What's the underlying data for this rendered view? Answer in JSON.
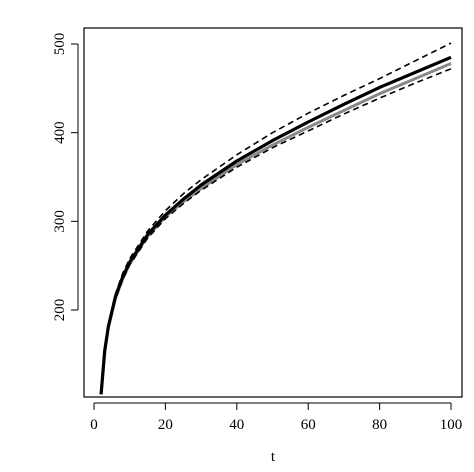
{
  "chart_data": {
    "type": "line",
    "title": "",
    "xlabel": "t",
    "ylabel": "",
    "xlim": [
      0,
      100
    ],
    "ylim": [
      105,
      510
    ],
    "grid": false,
    "legend": "none",
    "xticks": [
      0,
      20,
      40,
      60,
      80,
      100
    ],
    "yticks": [
      200,
      300,
      400,
      500
    ],
    "series": [
      {
        "style": "dashed-upper",
        "color": "#000000",
        "x": [
          2,
          3,
          4,
          6,
          8,
          10,
          15,
          20,
          25,
          30,
          40,
          50,
          60,
          70,
          80,
          90,
          100
        ],
        "y": [
          105,
          155,
          183,
          218,
          241,
          258,
          289,
          312,
          331,
          347,
          375,
          400,
          422,
          442,
          461,
          481,
          501
        ]
      },
      {
        "style": "solid-thick",
        "color": "#000000",
        "x": [
          2,
          3,
          4,
          6,
          8,
          10,
          15,
          20,
          25,
          30,
          40,
          50,
          60,
          70,
          80,
          90,
          100
        ],
        "y": [
          105,
          154,
          181,
          215,
          237,
          254,
          285,
          307,
          325,
          341,
          368,
          391,
          412,
          432,
          451,
          468,
          485
        ]
      },
      {
        "style": "solid-gray",
        "color": "#888888",
        "x": [
          2,
          3,
          4,
          6,
          8,
          10,
          15,
          20,
          25,
          30,
          40,
          50,
          60,
          70,
          80,
          90,
          100
        ],
        "y": [
          105,
          153,
          180,
          213,
          235,
          252,
          283,
          305,
          322,
          337,
          364,
          386,
          406,
          425,
          444,
          461,
          478
        ]
      },
      {
        "style": "dashed-lower",
        "color": "#000000",
        "x": [
          2,
          3,
          4,
          6,
          8,
          10,
          15,
          20,
          25,
          30,
          40,
          50,
          60,
          70,
          80,
          90,
          100
        ],
        "y": [
          105,
          153,
          179,
          212,
          234,
          251,
          281,
          303,
          320,
          335,
          361,
          383,
          402,
          421,
          439,
          456,
          472
        ]
      }
    ]
  }
}
